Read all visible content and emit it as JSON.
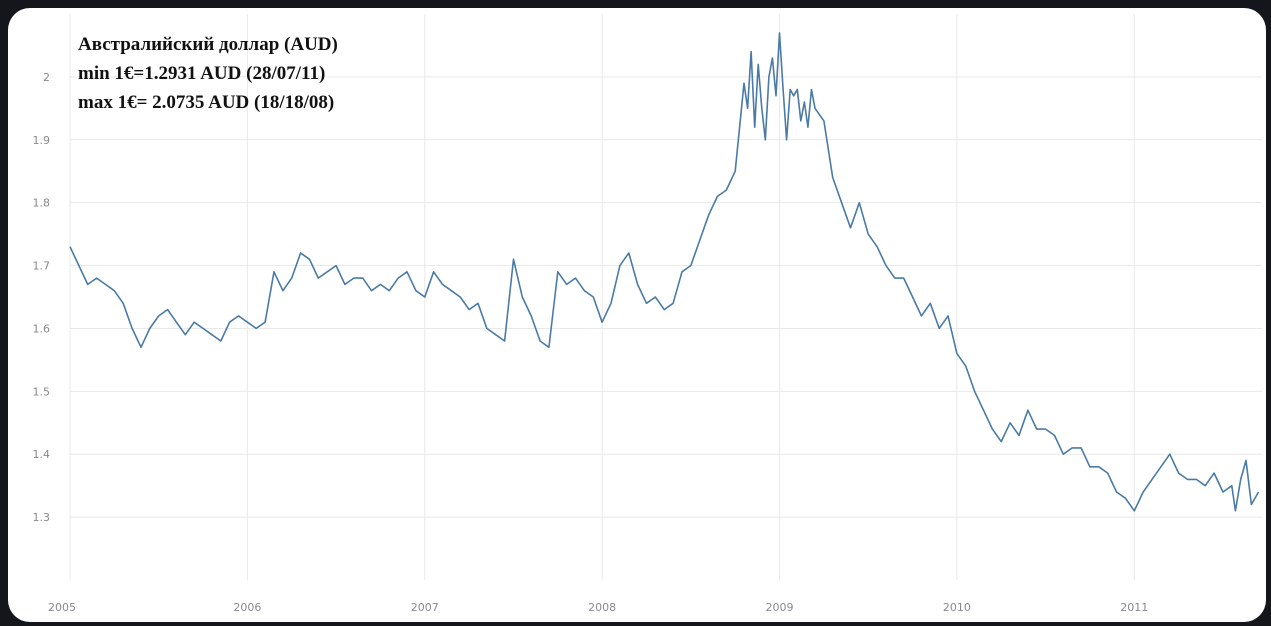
{
  "chart_data": {
    "type": "line",
    "title": "",
    "xlabel": "",
    "ylabel": "",
    "annotations": [
      "Австралийский доллар (AUD)",
      "min 1€=1.2931 AUD (28/07/11)",
      "max 1€= 2.0735 AUD (18/18/08)"
    ],
    "x_ticks": [
      "2005",
      "2006",
      "2007",
      "2008",
      "2009",
      "2010",
      "2011"
    ],
    "y_ticks": [
      "1.3",
      "1.4",
      "1.5",
      "1.6",
      "1.7",
      "1.8",
      "1.9",
      "2"
    ],
    "xlim": [
      2005.0,
      2011.72
    ],
    "ylim": [
      1.2,
      2.1
    ],
    "grid": true,
    "line_color": "#4a7aa6",
    "series": [
      {
        "x": [
          2005.0,
          2005.05,
          2005.1,
          2005.15,
          2005.2,
          2005.25,
          2005.3,
          2005.35,
          2005.4,
          2005.45,
          2005.5,
          2005.55,
          2005.6,
          2005.65,
          2005.7,
          2005.75,
          2005.8,
          2005.85,
          2005.9,
          2005.95,
          2006.0,
          2006.05,
          2006.1,
          2006.15,
          2006.2,
          2006.25,
          2006.3,
          2006.35,
          2006.4,
          2006.45,
          2006.5,
          2006.55,
          2006.6,
          2006.65,
          2006.7,
          2006.75,
          2006.8,
          2006.85,
          2006.9,
          2006.95,
          2007.0,
          2007.05,
          2007.1,
          2007.15,
          2007.2,
          2007.25,
          2007.3,
          2007.35,
          2007.4,
          2007.45,
          2007.5,
          2007.55,
          2007.6,
          2007.65,
          2007.7,
          2007.75,
          2007.8,
          2007.85,
          2007.9,
          2007.95,
          2008.0,
          2008.05,
          2008.1,
          2008.15,
          2008.2,
          2008.25,
          2008.3,
          2008.35,
          2008.4,
          2008.45,
          2008.5,
          2008.55,
          2008.6,
          2008.65,
          2008.7,
          2008.75,
          2008.8,
          2008.82,
          2008.84,
          2008.86,
          2008.88,
          2008.9,
          2008.92,
          2008.94,
          2008.96,
          2008.98,
          2009.0,
          2009.02,
          2009.04,
          2009.06,
          2009.08,
          2009.1,
          2009.12,
          2009.14,
          2009.16,
          2009.18,
          2009.2,
          2009.25,
          2009.3,
          2009.35,
          2009.4,
          2009.45,
          2009.5,
          2009.55,
          2009.6,
          2009.65,
          2009.7,
          2009.75,
          2009.8,
          2009.85,
          2009.9,
          2009.95,
          2010.0,
          2010.05,
          2010.1,
          2010.15,
          2010.2,
          2010.25,
          2010.3,
          2010.35,
          2010.4,
          2010.45,
          2010.5,
          2010.55,
          2010.6,
          2010.65,
          2010.7,
          2010.75,
          2010.8,
          2010.85,
          2010.9,
          2010.95,
          2011.0,
          2011.05,
          2011.1,
          2011.15,
          2011.2,
          2011.25,
          2011.3,
          2011.35,
          2011.4,
          2011.45,
          2011.5,
          2011.55,
          2011.57,
          2011.6,
          2011.63,
          2011.66,
          2011.7
        ],
        "y": [
          1.73,
          1.7,
          1.67,
          1.68,
          1.67,
          1.66,
          1.64,
          1.6,
          1.57,
          1.6,
          1.62,
          1.63,
          1.61,
          1.59,
          1.61,
          1.6,
          1.59,
          1.58,
          1.61,
          1.62,
          1.61,
          1.6,
          1.61,
          1.69,
          1.66,
          1.68,
          1.72,
          1.71,
          1.68,
          1.69,
          1.7,
          1.67,
          1.68,
          1.68,
          1.66,
          1.67,
          1.66,
          1.68,
          1.69,
          1.66,
          1.65,
          1.69,
          1.67,
          1.66,
          1.65,
          1.63,
          1.64,
          1.6,
          1.59,
          1.58,
          1.71,
          1.65,
          1.62,
          1.58,
          1.57,
          1.69,
          1.67,
          1.68,
          1.66,
          1.65,
          1.61,
          1.64,
          1.7,
          1.72,
          1.67,
          1.64,
          1.65,
          1.63,
          1.64,
          1.69,
          1.7,
          1.74,
          1.78,
          1.81,
          1.82,
          1.85,
          1.99,
          1.95,
          2.04,
          1.92,
          2.02,
          1.95,
          1.9,
          2.0,
          2.03,
          1.97,
          2.07,
          1.98,
          1.9,
          1.98,
          1.97,
          1.98,
          1.93,
          1.96,
          1.92,
          1.98,
          1.95,
          1.93,
          1.84,
          1.8,
          1.76,
          1.8,
          1.75,
          1.73,
          1.7,
          1.68,
          1.68,
          1.65,
          1.62,
          1.64,
          1.6,
          1.62,
          1.56,
          1.54,
          1.5,
          1.47,
          1.44,
          1.42,
          1.45,
          1.43,
          1.47,
          1.44,
          1.44,
          1.43,
          1.4,
          1.41,
          1.41,
          1.38,
          1.38,
          1.37,
          1.34,
          1.33,
          1.31,
          1.34,
          1.36,
          1.38,
          1.4,
          1.37,
          1.36,
          1.36,
          1.35,
          1.37,
          1.34,
          1.35,
          1.31,
          1.36,
          1.39,
          1.32,
          1.34
        ]
      }
    ]
  }
}
